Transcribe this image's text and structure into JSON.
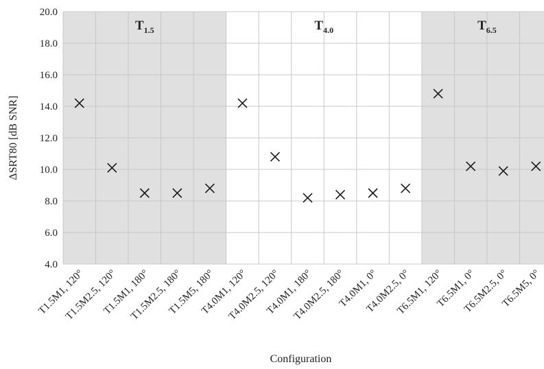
{
  "chart_data": {
    "type": "scatter",
    "xlabel": "Configuration",
    "ylabel": "ΔSRT80 [dB SNR]",
    "ylim": [
      4.0,
      20.0
    ],
    "yticks": [
      "4.0",
      "6.0",
      "8.0",
      "10.0",
      "12.0",
      "14.0",
      "16.0",
      "18.0",
      "20.0"
    ],
    "grid": true,
    "marker": "x",
    "categories": [
      "T1.5M1, 120°",
      "T1.5M2.5, 120°",
      "T1.5M1, 180°",
      "T1.5M2.5, 180°",
      "T1.5M5, 180°",
      "T4.0M1, 120°",
      "T4.0M2.5, 120°",
      "T4.0M1, 180°",
      "T4.0M2.5, 180°",
      "T4.0M1, 0°",
      "T4.0M2.5, 0°",
      "T6.5M1, 120°",
      "T6.5M1, 0°",
      "T6.5M2.5, 0°",
      "T6.5M5, 0°"
    ],
    "values": [
      14.2,
      10.1,
      8.5,
      8.5,
      8.8,
      14.2,
      10.8,
      8.2,
      8.4,
      8.5,
      8.8,
      14.8,
      10.2,
      9.9,
      10.2
    ],
    "groups": [
      {
        "label": "T",
        "sub": "1.5",
        "start": 0,
        "end": 4,
        "shaded": true,
        "shade_color": "#e0e0e0"
      },
      {
        "label": "T",
        "sub": "4.0",
        "start": 5,
        "end": 10,
        "shaded": false,
        "shade_color": "#ffffff"
      },
      {
        "label": "T",
        "sub": "6.5",
        "start": 11,
        "end": 14,
        "shaded": true,
        "shade_color": "#e0e0e0"
      }
    ]
  }
}
